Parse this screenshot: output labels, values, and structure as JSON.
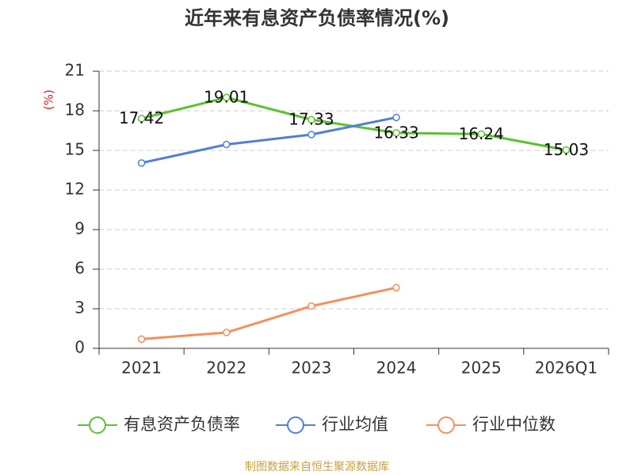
{
  "chart_data": {
    "type": "line",
    "title": "近年来有息资产负债率情况(%)",
    "y_label": "(%)",
    "categories": [
      "2021",
      "2022",
      "2023",
      "2024",
      "2025",
      "2026Q1"
    ],
    "series": [
      {
        "name": "有息资产负债率",
        "color": "#5cc22e",
        "values": [
          17.42,
          19.01,
          17.33,
          16.33,
          16.24,
          15.03
        ],
        "show_labels": true
      },
      {
        "name": "行业均值",
        "color": "#4f7fd9",
        "values": [
          14.05,
          15.45,
          16.2,
          17.5,
          null,
          null
        ]
      },
      {
        "name": "行业中位数",
        "color": "#f5905a",
        "values": [
          0.7,
          1.2,
          3.2,
          4.6,
          null,
          null
        ]
      }
    ],
    "ylim": [
      0,
      21
    ],
    "yticks": [
      0,
      3,
      6,
      9,
      12,
      15,
      18,
      21
    ],
    "grid": true,
    "source": "制图数据来自恒生聚源数据库"
  }
}
